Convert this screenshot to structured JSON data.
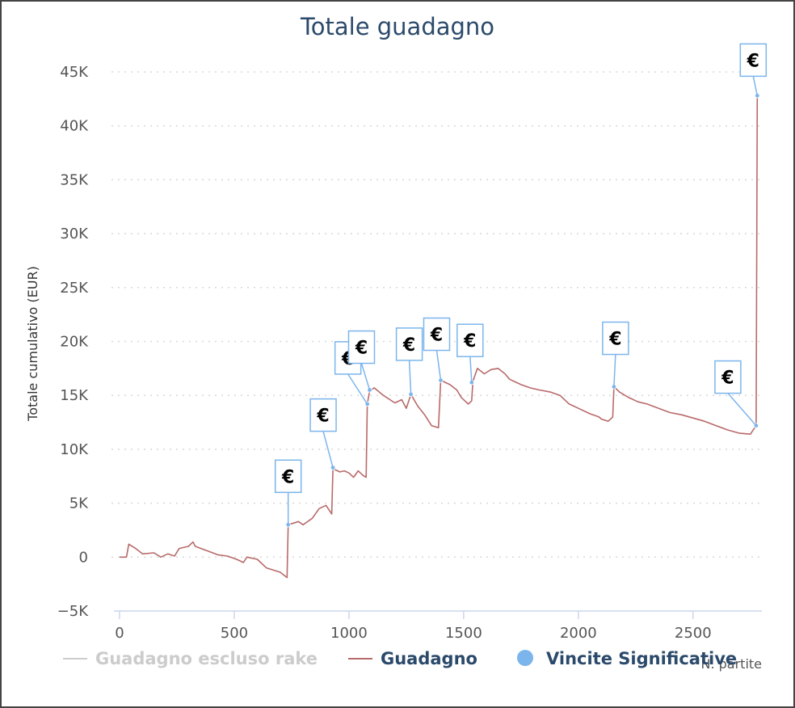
{
  "chart_data": {
    "type": "line",
    "title": "Totale guadagno",
    "xlabel": "N. partite",
    "ylabel": "Totale cumulativo (EUR)",
    "xlim": [
      0,
      2800
    ],
    "ylim": [
      -5000,
      45000
    ],
    "x_ticks": [
      0,
      500,
      1000,
      1500,
      2000,
      2500
    ],
    "x_tick_labels": [
      "0",
      "500",
      "1000",
      "1500",
      "2000",
      "2500"
    ],
    "y_ticks": [
      -5000,
      0,
      5000,
      10000,
      15000,
      20000,
      25000,
      30000,
      35000,
      40000,
      45000
    ],
    "y_tick_labels": [
      "−5K",
      "0",
      "5K",
      "10K",
      "15K",
      "20K",
      "25K",
      "30K",
      "35K",
      "40K",
      "45K"
    ],
    "grid": "horizontal dotted",
    "legend_position": "bottom",
    "legend": [
      {
        "name": "Guadagno escluso rake",
        "color": "#cccccc",
        "marker": "line",
        "hidden": true
      },
      {
        "name": "Guadagno",
        "color": "#b86a6a",
        "marker": "line",
        "hidden": false
      },
      {
        "name": "Vincite Significative",
        "color": "#7cb5ec",
        "marker": "circle",
        "hidden": false
      }
    ],
    "series": [
      {
        "name": "Guadagno",
        "color": "#b86a6a",
        "points": [
          [
            0,
            0
          ],
          [
            30,
            0
          ],
          [
            40,
            1200
          ],
          [
            70,
            800
          ],
          [
            100,
            300
          ],
          [
            150,
            400
          ],
          [
            180,
            0
          ],
          [
            210,
            300
          ],
          [
            240,
            100
          ],
          [
            260,
            800
          ],
          [
            300,
            1000
          ],
          [
            320,
            1400
          ],
          [
            330,
            1000
          ],
          [
            380,
            600
          ],
          [
            430,
            200
          ],
          [
            470,
            100
          ],
          [
            510,
            -200
          ],
          [
            540,
            -500
          ],
          [
            555,
            0
          ],
          [
            600,
            -200
          ],
          [
            640,
            -1000
          ],
          [
            700,
            -1400
          ],
          [
            730,
            -1900
          ],
          [
            735,
            3000
          ],
          [
            780,
            3300
          ],
          [
            800,
            3000
          ],
          [
            840,
            3600
          ],
          [
            870,
            4500
          ],
          [
            900,
            4800
          ],
          [
            925,
            4000
          ],
          [
            930,
            8200
          ],
          [
            960,
            7900
          ],
          [
            980,
            8000
          ],
          [
            1000,
            7800
          ],
          [
            1020,
            7400
          ],
          [
            1040,
            8000
          ],
          [
            1060,
            7600
          ],
          [
            1075,
            7400
          ],
          [
            1080,
            14200
          ],
          [
            1090,
            15400
          ],
          [
            1110,
            15700
          ],
          [
            1150,
            15000
          ],
          [
            1200,
            14300
          ],
          [
            1230,
            14600
          ],
          [
            1250,
            13800
          ],
          [
            1270,
            15100
          ],
          [
            1300,
            14000
          ],
          [
            1330,
            13200
          ],
          [
            1360,
            12200
          ],
          [
            1390,
            12000
          ],
          [
            1400,
            16400
          ],
          [
            1440,
            16000
          ],
          [
            1470,
            15500
          ],
          [
            1490,
            14800
          ],
          [
            1520,
            14200
          ],
          [
            1535,
            14500
          ],
          [
            1540,
            16300
          ],
          [
            1560,
            17500
          ],
          [
            1590,
            17000
          ],
          [
            1620,
            17400
          ],
          [
            1650,
            17500
          ],
          [
            1680,
            17000
          ],
          [
            1700,
            16500
          ],
          [
            1750,
            16000
          ],
          [
            1790,
            15700
          ],
          [
            1830,
            15500
          ],
          [
            1880,
            15300
          ],
          [
            1920,
            15000
          ],
          [
            1960,
            14200
          ],
          [
            2000,
            13800
          ],
          [
            2050,
            13300
          ],
          [
            2090,
            13000
          ],
          [
            2100,
            12800
          ],
          [
            2130,
            12600
          ],
          [
            2150,
            13000
          ],
          [
            2155,
            15800
          ],
          [
            2180,
            15300
          ],
          [
            2220,
            14800
          ],
          [
            2260,
            14400
          ],
          [
            2300,
            14200
          ],
          [
            2350,
            13800
          ],
          [
            2400,
            13400
          ],
          [
            2450,
            13200
          ],
          [
            2500,
            12900
          ],
          [
            2550,
            12600
          ],
          [
            2600,
            12200
          ],
          [
            2650,
            11800
          ],
          [
            2700,
            11500
          ],
          [
            2750,
            11400
          ],
          [
            2775,
            12200
          ],
          [
            2780,
            42800
          ]
        ]
      },
      {
        "name": "Vincite Significative",
        "color": "#7cb5ec",
        "points": [
          [
            735,
            3000
          ],
          [
            930,
            8300
          ],
          [
            1080,
            14200
          ],
          [
            1090,
            15500
          ],
          [
            1270,
            15100
          ],
          [
            1400,
            16400
          ],
          [
            1535,
            16200
          ],
          [
            2155,
            15800
          ],
          [
            2775,
            12200
          ],
          [
            2780,
            42800
          ]
        ]
      }
    ],
    "flags": [
      {
        "x": 735,
        "y": 3000,
        "label": "€"
      },
      {
        "x": 930,
        "y": 8300,
        "label": "€"
      },
      {
        "x": 1080,
        "y": 14200,
        "label": "€"
      },
      {
        "x": 1090,
        "y": 15500,
        "label": "€"
      },
      {
        "x": 1270,
        "y": 15100,
        "label": "€"
      },
      {
        "x": 1400,
        "y": 16400,
        "label": "€"
      },
      {
        "x": 1535,
        "y": 16200,
        "label": "€"
      },
      {
        "x": 2155,
        "y": 15800,
        "label": "€"
      },
      {
        "x": 2775,
        "y": 12200,
        "label": "€"
      },
      {
        "x": 2780,
        "y": 42800,
        "label": "€"
      }
    ]
  }
}
